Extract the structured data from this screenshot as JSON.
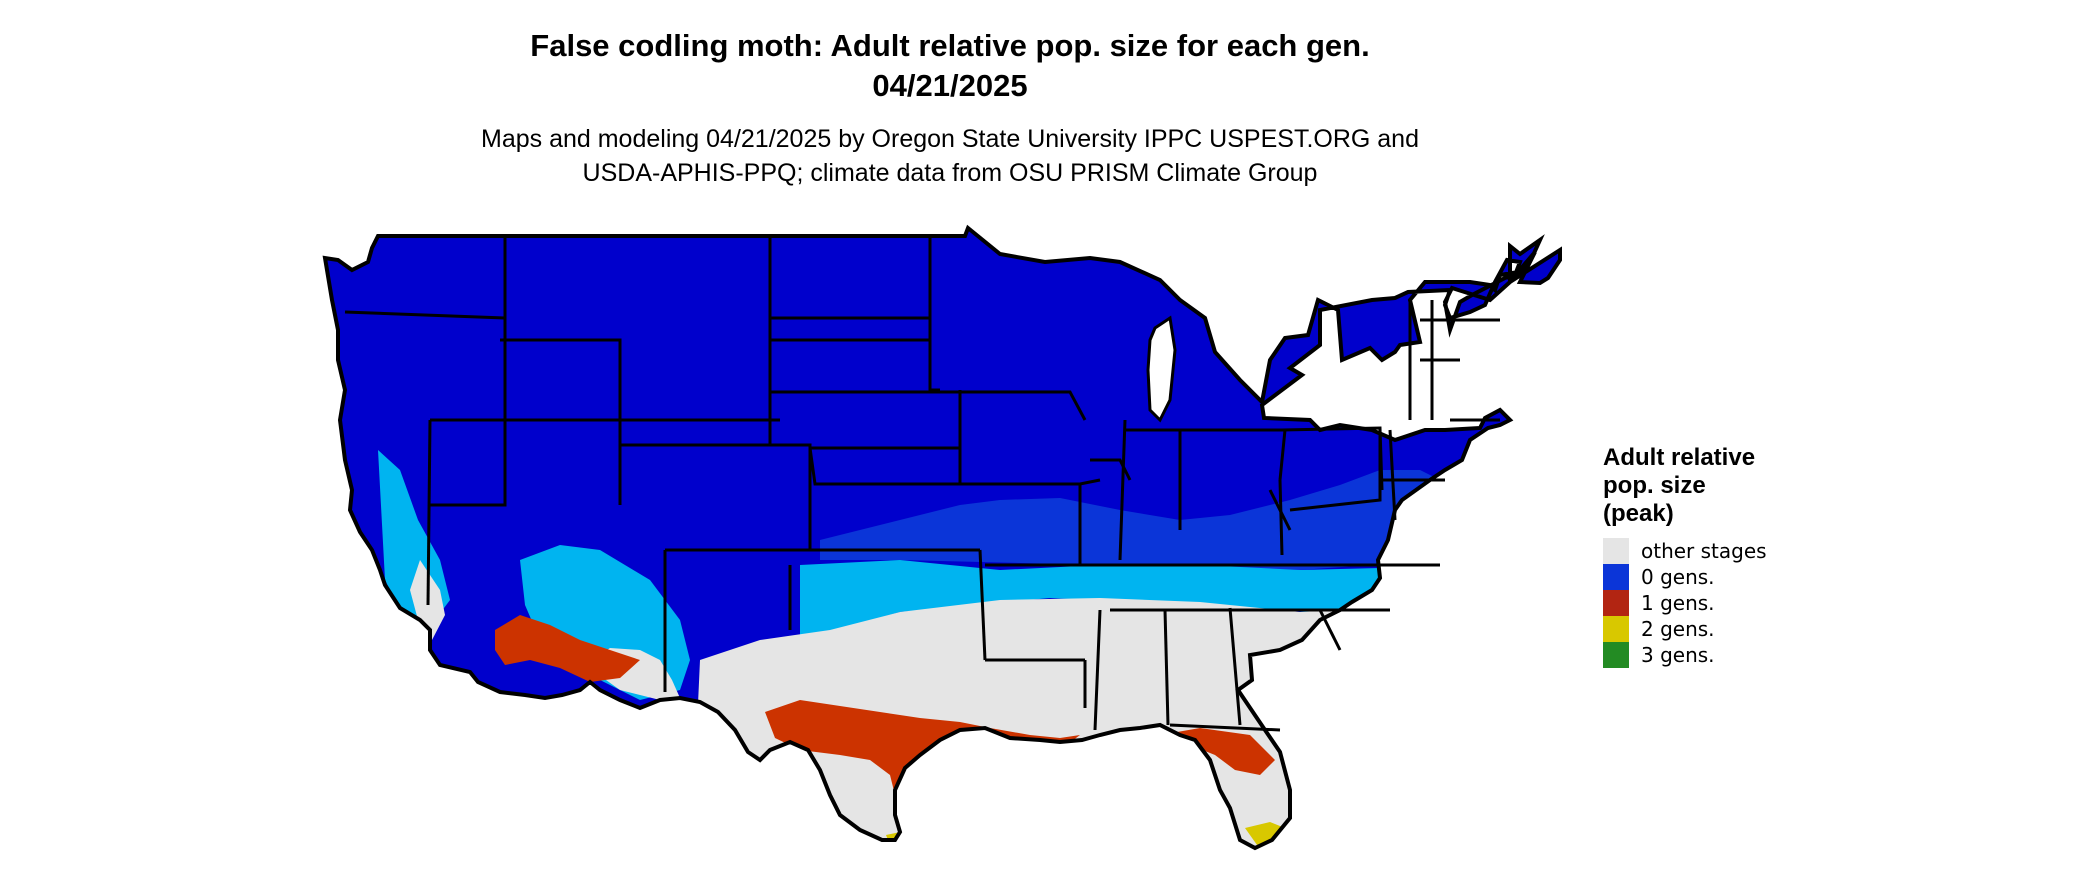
{
  "title": {
    "line1": "False codling moth: Adult relative pop. size for each gen.",
    "line2": "04/21/2025"
  },
  "subtitle": {
    "line1": "Maps and modeling 04/21/2025 by Oregon State University IPPC USPEST.ORG and",
    "line2": "USDA-APHIS-PPQ; climate data from OSU PRISM Climate Group"
  },
  "legend": {
    "title": "Adult relative pop. size (peak)",
    "items": [
      {
        "label": "other stages",
        "color": "#e5e5e5"
      },
      {
        "label": "0 gens.",
        "color": "#0b35d8"
      },
      {
        "label": "1 gens.",
        "color": "#b22512"
      },
      {
        "label": "2 gens.",
        "color": "#d8c800"
      },
      {
        "label": "3 gens.",
        "color": "#238b23"
      }
    ]
  },
  "map": {
    "colors": {
      "northern_blue": "#0000cc",
      "mid_blue": "#0b35d8",
      "light_blue": "#00b4f0",
      "gray": "#e5e5e5",
      "red": "#cc3300",
      "yellow": "#d8c800",
      "border": "#000000"
    }
  }
}
